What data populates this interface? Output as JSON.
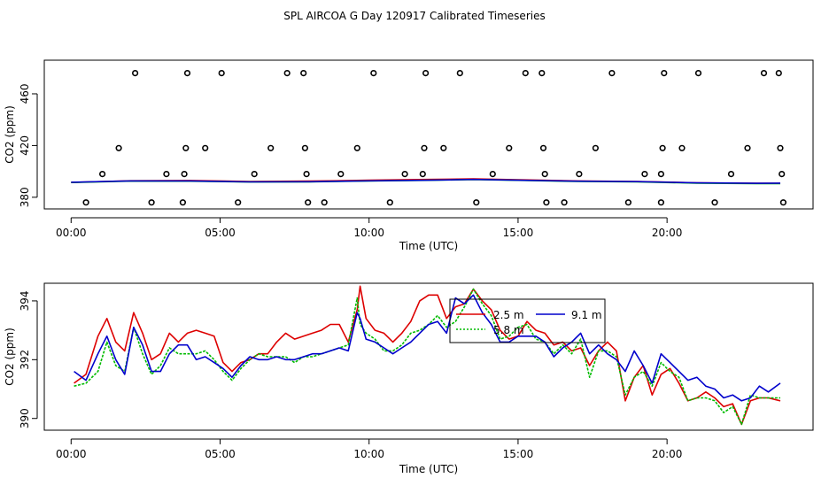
{
  "title": "SPL AIRCOA G  Day 120917  Calibrated Timeseries",
  "colors": {
    "red": "#dd0000",
    "green": "#00bb00",
    "blue": "#0000cc",
    "axis": "#000000"
  },
  "chart_data": [
    {
      "type": "scatter+line",
      "name": "top",
      "xlabel": "Time (UTC)",
      "ylabel": "CO2 (ppm)",
      "xlim": [
        -0.9,
        24.9
      ],
      "ylim": [
        371,
        486
      ],
      "xticks": [
        0,
        5,
        10,
        15,
        20
      ],
      "xtick_labels": [
        "00:00",
        "05:00",
        "10:00",
        "15:00",
        "20:00"
      ],
      "yticks": [
        380,
        420,
        460
      ],
      "ytick_labels": [
        "380",
        "420",
        "460"
      ],
      "calibration_points": [
        [
          0.5,
          376
        ],
        [
          1.05,
          398
        ],
        [
          1.6,
          418
        ],
        [
          2.15,
          476
        ],
        [
          2.7,
          376
        ],
        [
          3.2,
          398
        ],
        [
          3.75,
          376
        ],
        [
          3.8,
          398
        ],
        [
          3.85,
          418
        ],
        [
          3.9,
          476
        ],
        [
          4.5,
          418
        ],
        [
          5.05,
          476
        ],
        [
          5.6,
          376
        ],
        [
          6.15,
          398
        ],
        [
          6.7,
          418
        ],
        [
          7.25,
          476
        ],
        [
          7.8,
          476
        ],
        [
          7.85,
          418
        ],
        [
          7.9,
          398
        ],
        [
          7.95,
          376
        ],
        [
          8.5,
          376
        ],
        [
          9.05,
          398
        ],
        [
          9.6,
          418
        ],
        [
          10.15,
          476
        ],
        [
          10.7,
          376
        ],
        [
          11.2,
          398
        ],
        [
          11.8,
          398
        ],
        [
          11.85,
          418
        ],
        [
          11.9,
          476
        ],
        [
          12.5,
          418
        ],
        [
          13.05,
          476
        ],
        [
          13.6,
          376
        ],
        [
          14.15,
          398
        ],
        [
          14.7,
          418
        ],
        [
          15.25,
          476
        ],
        [
          15.8,
          476
        ],
        [
          15.85,
          418
        ],
        [
          15.9,
          398
        ],
        [
          15.95,
          376
        ],
        [
          16.55,
          376
        ],
        [
          17.05,
          398
        ],
        [
          17.6,
          418
        ],
        [
          18.15,
          476
        ],
        [
          18.7,
          376
        ],
        [
          19.25,
          398
        ],
        [
          19.8,
          376
        ],
        [
          19.8,
          398
        ],
        [
          19.85,
          418
        ],
        [
          19.9,
          476
        ],
        [
          20.5,
          418
        ],
        [
          21.05,
          476
        ],
        [
          21.6,
          376
        ],
        [
          22.15,
          398
        ],
        [
          22.7,
          418
        ],
        [
          23.25,
          476
        ],
        [
          23.75,
          476
        ],
        [
          23.8,
          418
        ],
        [
          23.85,
          398
        ],
        [
          23.9,
          376
        ]
      ],
      "series": [
        {
          "name": "red",
          "color": "#dd0000",
          "x": [
            0,
            2,
            4,
            6,
            8,
            10,
            12,
            13.5,
            15,
            17,
            19,
            21,
            23,
            23.8
          ],
          "y": [
            391.5,
            392.8,
            393.0,
            392.2,
            392.5,
            393.2,
            393.8,
            394.2,
            393.5,
            392.6,
            392.2,
            391.2,
            390.8,
            390.8
          ]
        },
        {
          "name": "green",
          "color": "#00bb00",
          "x": [
            0,
            2,
            4,
            6,
            8,
            10,
            12,
            13.5,
            15,
            17,
            19,
            21,
            23,
            23.8
          ],
          "y": [
            391.4,
            392.5,
            392.4,
            391.8,
            391.9,
            392.6,
            393.1,
            393.7,
            393.1,
            392.2,
            391.9,
            390.9,
            390.6,
            390.6
          ]
        },
        {
          "name": "blue",
          "color": "#0000cc",
          "x": [
            0,
            2,
            4,
            6,
            8,
            10,
            12,
            13.5,
            15,
            17,
            19,
            21,
            23,
            23.8
          ],
          "y": [
            391.6,
            392.6,
            392.6,
            391.9,
            392.0,
            392.7,
            393.2,
            393.8,
            393.2,
            392.4,
            392.1,
            391.1,
            390.8,
            390.9
          ]
        }
      ]
    },
    {
      "type": "line",
      "name": "bottom",
      "xlabel": "Time (UTC)",
      "ylabel": "CO2 (ppm)",
      "xlim": [
        -0.9,
        24.9
      ],
      "ylim": [
        389.6,
        394.6
      ],
      "xticks": [
        0,
        5,
        10,
        15,
        20
      ],
      "xtick_labels": [
        "00:00",
        "05:00",
        "10:00",
        "15:00",
        "20:00"
      ],
      "yticks": [
        390,
        392,
        394
      ],
      "ytick_labels": [
        "390",
        "392",
        "394"
      ],
      "legend": {
        "position": "top-center",
        "entries": [
          {
            "label": "2.5 m",
            "color": "#dd0000"
          },
          {
            "label": "5.8 m",
            "color": "#00bb00"
          },
          {
            "label": "9.1 m",
            "color": "#0000cc"
          }
        ]
      },
      "series": [
        {
          "name": "2.5 m",
          "color": "#dd0000",
          "x": [
            0.1,
            0.5,
            0.9,
            1.2,
            1.5,
            1.8,
            2.1,
            2.4,
            2.7,
            3.0,
            3.3,
            3.6,
            3.9,
            4.2,
            4.5,
            4.8,
            5.1,
            5.4,
            5.7,
            6.0,
            6.3,
            6.6,
            6.9,
            7.2,
            7.5,
            7.8,
            8.1,
            8.4,
            8.7,
            9.0,
            9.3,
            9.6,
            9.7,
            9.9,
            10.2,
            10.5,
            10.8,
            11.1,
            11.4,
            11.7,
            12.0,
            12.3,
            12.6,
            12.9,
            13.2,
            13.5,
            13.8,
            14.1,
            14.4,
            14.7,
            15.0,
            15.3,
            15.6,
            15.9,
            16.2,
            16.5,
            16.8,
            17.1,
            17.4,
            17.7,
            18.0,
            18.3,
            18.6,
            18.9,
            19.2,
            19.5,
            19.8,
            20.1,
            20.4,
            20.7,
            21.0,
            21.3,
            21.6,
            21.9,
            22.2,
            22.5,
            22.8,
            23.1,
            23.4,
            23.8
          ],
          "y": [
            391.2,
            391.5,
            392.8,
            393.4,
            392.6,
            392.3,
            393.6,
            392.9,
            392.0,
            392.2,
            392.9,
            392.6,
            392.9,
            393.0,
            392.9,
            392.8,
            391.9,
            391.6,
            391.9,
            392.0,
            392.2,
            392.2,
            392.6,
            392.9,
            392.7,
            392.8,
            392.9,
            393.0,
            393.2,
            393.2,
            392.6,
            393.7,
            394.5,
            393.4,
            393.0,
            392.9,
            392.6,
            392.9,
            393.3,
            394.0,
            394.2,
            394.2,
            393.4,
            393.8,
            393.9,
            394.4,
            394.0,
            393.7,
            393.0,
            392.7,
            392.8,
            393.3,
            393.0,
            392.9,
            392.5,
            392.6,
            392.3,
            392.4,
            391.8,
            392.3,
            392.6,
            392.3,
            390.6,
            391.4,
            391.8,
            390.8,
            391.5,
            391.7,
            391.2,
            390.6,
            390.7,
            390.9,
            390.7,
            390.4,
            390.5,
            389.8,
            390.6,
            390.7,
            390.7,
            390.6
          ]
        },
        {
          "name": "5.8 m",
          "color": "#00bb00",
          "x": [
            0.1,
            0.5,
            0.9,
            1.2,
            1.5,
            1.8,
            2.1,
            2.4,
            2.7,
            3.0,
            3.3,
            3.6,
            3.9,
            4.2,
            4.5,
            4.8,
            5.1,
            5.4,
            5.7,
            6.0,
            6.3,
            6.6,
            6.9,
            7.2,
            7.5,
            7.8,
            8.1,
            8.4,
            8.7,
            9.0,
            9.3,
            9.6,
            9.7,
            9.9,
            10.2,
            10.5,
            10.8,
            11.1,
            11.4,
            11.7,
            12.0,
            12.3,
            12.6,
            12.9,
            13.2,
            13.5,
            13.8,
            14.1,
            14.4,
            14.7,
            15.0,
            15.3,
            15.6,
            15.9,
            16.2,
            16.5,
            16.8,
            17.1,
            17.4,
            17.7,
            18.0,
            18.3,
            18.6,
            18.9,
            19.2,
            19.5,
            19.8,
            20.1,
            20.4,
            20.7,
            21.0,
            21.3,
            21.6,
            21.9,
            22.2,
            22.5,
            22.8,
            23.1,
            23.4,
            23.8
          ],
          "y": [
            391.1,
            391.2,
            391.6,
            392.6,
            391.8,
            391.6,
            393.1,
            392.2,
            391.5,
            391.8,
            392.4,
            392.2,
            392.2,
            392.2,
            392.3,
            392.0,
            391.6,
            391.3,
            391.7,
            392.0,
            392.2,
            392.1,
            392.1,
            392.1,
            391.9,
            392.1,
            392.1,
            392.2,
            392.3,
            392.4,
            392.5,
            394.1,
            393.2,
            392.9,
            392.7,
            392.3,
            392.3,
            392.5,
            392.9,
            393.0,
            393.2,
            393.5,
            393.1,
            393.3,
            393.8,
            394.4,
            393.9,
            393.5,
            392.7,
            392.8,
            393.1,
            393.2,
            392.7,
            392.6,
            392.2,
            392.5,
            392.2,
            392.7,
            391.4,
            392.3,
            392.3,
            392.1,
            390.8,
            391.4,
            391.6,
            391.1,
            391.9,
            391.6,
            391.4,
            390.6,
            390.7,
            390.7,
            390.6,
            390.2,
            390.4,
            389.8,
            390.8,
            390.7,
            390.7,
            390.7
          ]
        },
        {
          "name": "9.1 m",
          "color": "#0000cc",
          "x": [
            0.1,
            0.5,
            0.9,
            1.2,
            1.5,
            1.8,
            2.1,
            2.4,
            2.7,
            3.0,
            3.3,
            3.6,
            3.9,
            4.2,
            4.5,
            4.8,
            5.1,
            5.4,
            5.7,
            6.0,
            6.3,
            6.6,
            6.9,
            7.2,
            7.5,
            7.8,
            8.1,
            8.4,
            8.7,
            9.0,
            9.3,
            9.6,
            9.7,
            9.9,
            10.2,
            10.5,
            10.8,
            11.1,
            11.4,
            11.7,
            12.0,
            12.3,
            12.6,
            12.9,
            13.2,
            13.5,
            13.8,
            14.1,
            14.4,
            14.7,
            15.0,
            15.3,
            15.6,
            15.9,
            16.2,
            16.5,
            16.8,
            17.1,
            17.4,
            17.7,
            18.0,
            18.3,
            18.6,
            18.9,
            19.2,
            19.5,
            19.8,
            20.1,
            20.4,
            20.7,
            21.0,
            21.3,
            21.6,
            21.9,
            22.2,
            22.5,
            22.8,
            23.1,
            23.4,
            23.8
          ],
          "y": [
            391.6,
            391.3,
            392.2,
            392.8,
            392.0,
            391.5,
            393.1,
            392.5,
            391.6,
            391.6,
            392.2,
            392.5,
            392.5,
            392.0,
            392.1,
            391.9,
            391.7,
            391.4,
            391.8,
            392.1,
            392.0,
            392.0,
            392.1,
            392.0,
            392.0,
            392.1,
            392.2,
            392.2,
            392.3,
            392.4,
            392.3,
            393.6,
            393.4,
            392.7,
            392.6,
            392.4,
            392.2,
            392.4,
            392.6,
            392.9,
            393.2,
            393.3,
            392.9,
            394.1,
            393.9,
            394.2,
            393.6,
            393.2,
            392.6,
            392.6,
            392.8,
            392.8,
            392.8,
            392.6,
            392.1,
            392.4,
            392.6,
            392.9,
            392.2,
            392.5,
            392.2,
            392.0,
            391.6,
            392.3,
            391.8,
            391.2,
            392.2,
            391.9,
            391.6,
            391.3,
            391.4,
            391.1,
            391.0,
            390.7,
            390.8,
            390.6,
            390.7,
            391.1,
            390.9,
            391.2
          ]
        }
      ]
    }
  ]
}
